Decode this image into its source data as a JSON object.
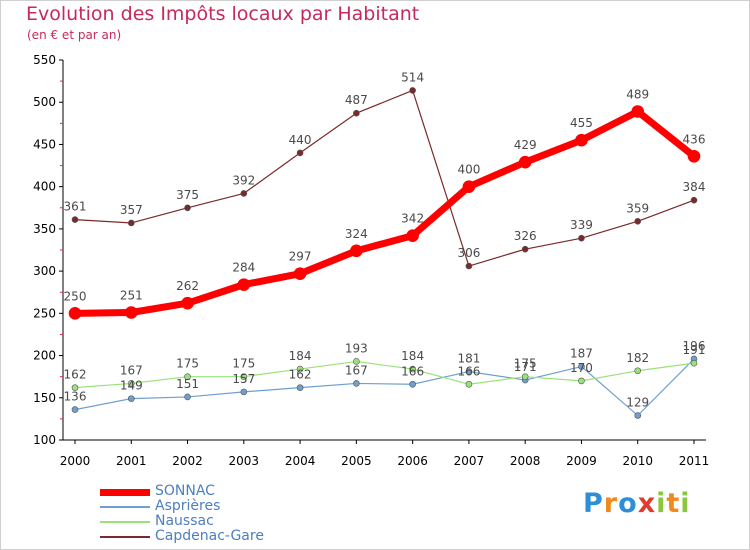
{
  "chart_data": {
    "type": "line",
    "title": "Evolution des Impôts locaux par Habitant",
    "subtitle": "(en € et par an)",
    "x": [
      "2000",
      "2001",
      "2002",
      "2003",
      "2004",
      "2005",
      "2006",
      "2007",
      "2008",
      "2009",
      "2010",
      "2011"
    ],
    "ylim": [
      100,
      550
    ],
    "yticks": [
      100,
      150,
      200,
      250,
      300,
      350,
      400,
      450,
      500,
      550
    ],
    "grid": false,
    "legend_position": "bottom-left",
    "series": [
      {
        "name": "SONNAC",
        "color": "#ff0000",
        "values": [
          250,
          251,
          262,
          284,
          297,
          324,
          342,
          400,
          429,
          455,
          489,
          436
        ]
      },
      {
        "name": "Asprières",
        "color": "#6f9fcf",
        "values": [
          136,
          149,
          151,
          157,
          162,
          167,
          166,
          181,
          171,
          187,
          129,
          196
        ]
      },
      {
        "name": "Naussac",
        "color": "#99e27a",
        "values": [
          162,
          167,
          175,
          175,
          184,
          193,
          184,
          166,
          175,
          170,
          182,
          191
        ]
      },
      {
        "name": "Capdenac-Gare",
        "color": "#7a2a2a",
        "values": [
          361,
          357,
          375,
          392,
          440,
          487,
          514,
          306,
          326,
          339,
          359,
          384
        ]
      }
    ]
  },
  "logo": {
    "letters": [
      "P",
      "r",
      "o",
      "x",
      "i",
      "t",
      "i"
    ],
    "colors": [
      "#2f8fd6",
      "#f08a1e",
      "#2f8fd6",
      "#e23b2e",
      "#8cc63f",
      "#f08a1e",
      "#8cc63f"
    ]
  }
}
